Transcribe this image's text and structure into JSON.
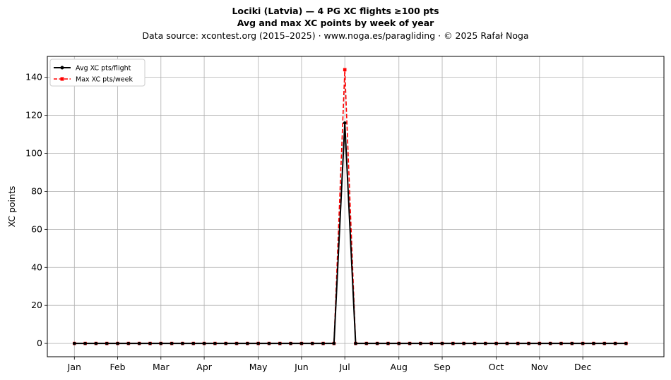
{
  "chart_data": {
    "type": "line",
    "title_lines": [
      "Lociki (Latvia)  —  4 PG XC flights ≥100 pts",
      "Avg and max XC points by week of year"
    ],
    "subtitle": "Data source: xcontest.org (2015–2025)  ·  www.noga.es/paragliding  ·  © 2025 Rafał Noga",
    "xlabel": "",
    "ylabel": "XC points",
    "ylim": [
      -7,
      151
    ],
    "xlim": [
      -2.5,
      54.5
    ],
    "yticks": [
      0,
      20,
      40,
      60,
      80,
      100,
      120,
      140
    ],
    "month_ticks": [
      {
        "label": "Jan",
        "week": 0
      },
      {
        "label": "Feb",
        "week": 4
      },
      {
        "label": "Mar",
        "week": 8
      },
      {
        "label": "Apr",
        "week": 12
      },
      {
        "label": "May",
        "week": 17
      },
      {
        "label": "Jun",
        "week": 21
      },
      {
        "label": "Jul",
        "week": 25
      },
      {
        "label": "Aug",
        "week": 30
      },
      {
        "label": "Sep",
        "week": 34
      },
      {
        "label": "Oct",
        "week": 39
      },
      {
        "label": "Nov",
        "week": 43
      },
      {
        "label": "Dec",
        "week": 47
      }
    ],
    "grid": true,
    "legend_position": "top-left",
    "x": [
      0,
      1,
      2,
      3,
      4,
      5,
      6,
      7,
      8,
      9,
      10,
      11,
      12,
      13,
      14,
      15,
      16,
      17,
      18,
      19,
      20,
      21,
      22,
      23,
      24,
      25,
      26,
      27,
      28,
      29,
      30,
      31,
      32,
      33,
      34,
      35,
      36,
      37,
      38,
      39,
      40,
      41,
      42,
      43,
      44,
      45,
      46,
      47,
      48,
      49,
      50,
      51
    ],
    "series": [
      {
        "name": "Avg XC pts/flight",
        "color": "#000000",
        "style": "solid",
        "marker": "circle",
        "values": [
          0,
          0,
          0,
          0,
          0,
          0,
          0,
          0,
          0,
          0,
          0,
          0,
          0,
          0,
          0,
          0,
          0,
          0,
          0,
          0,
          0,
          0,
          0,
          0,
          0,
          116,
          0,
          0,
          0,
          0,
          0,
          0,
          0,
          0,
          0,
          0,
          0,
          0,
          0,
          0,
          0,
          0,
          0,
          0,
          0,
          0,
          0,
          0,
          0,
          0,
          0,
          0
        ]
      },
      {
        "name": "Max XC pts/week",
        "color": "#ff0000",
        "style": "dashed",
        "marker": "square",
        "values": [
          0,
          0,
          0,
          0,
          0,
          0,
          0,
          0,
          0,
          0,
          0,
          0,
          0,
          0,
          0,
          0,
          0,
          0,
          0,
          0,
          0,
          0,
          0,
          0,
          0,
          144,
          0,
          0,
          0,
          0,
          0,
          0,
          0,
          0,
          0,
          0,
          0,
          0,
          0,
          0,
          0,
          0,
          0,
          0,
          0,
          0,
          0,
          0,
          0,
          0,
          0,
          0
        ]
      }
    ]
  }
}
